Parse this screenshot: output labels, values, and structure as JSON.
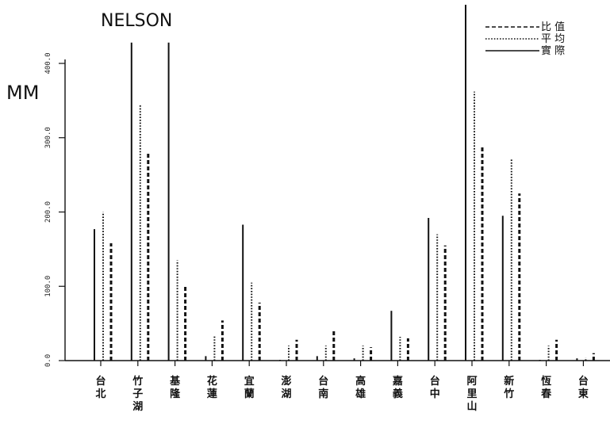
{
  "chart_data": {
    "type": "bar",
    "title": "NELSON",
    "ylabel": "MM",
    "ylim": [
      0,
      450
    ],
    "yticks": [
      "0.0",
      "100.0",
      "200.0",
      "300.0",
      "400.0"
    ],
    "categories": [
      {
        "label": [
          "台",
          "北"
        ]
      },
      {
        "label": [
          "竹",
          "子",
          "湖"
        ]
      },
      {
        "label": [
          "基",
          "隆"
        ]
      },
      {
        "label": [
          "花",
          "蓮"
        ]
      },
      {
        "label": [
          "宜",
          "蘭"
        ]
      },
      {
        "label": [
          "澎",
          "湖"
        ]
      },
      {
        "label": [
          "台",
          "南"
        ]
      },
      {
        "label": [
          "高",
          "雄"
        ]
      },
      {
        "label": [
          "嘉",
          "義"
        ]
      },
      {
        "label": [
          "台",
          "中"
        ]
      },
      {
        "label": [
          "阿",
          "里",
          "山"
        ]
      },
      {
        "label": [
          "新",
          "竹"
        ]
      },
      {
        "label": [
          "恆",
          "春"
        ]
      },
      {
        "label": [
          "台",
          "東"
        ]
      }
    ],
    "series": [
      {
        "name": "實 際",
        "style": "solid",
        "values": [
          177,
          428,
          428,
          6,
          183,
          1,
          6,
          3,
          67,
          192,
          480,
          195,
          1,
          3
        ]
      },
      {
        "name": "平 均",
        "style": "dotted",
        "values": [
          200,
          345,
          135,
          33,
          105,
          20,
          20,
          20,
          32,
          170,
          362,
          272,
          20,
          4
        ]
      },
      {
        "name": "比 值",
        "style": "dashed",
        "values": [
          158,
          281,
          101,
          54,
          78,
          28,
          42,
          18,
          30,
          155,
          287,
          225,
          28,
          10
        ]
      }
    ],
    "legend": {
      "position": "top-right"
    },
    "grid": false
  }
}
